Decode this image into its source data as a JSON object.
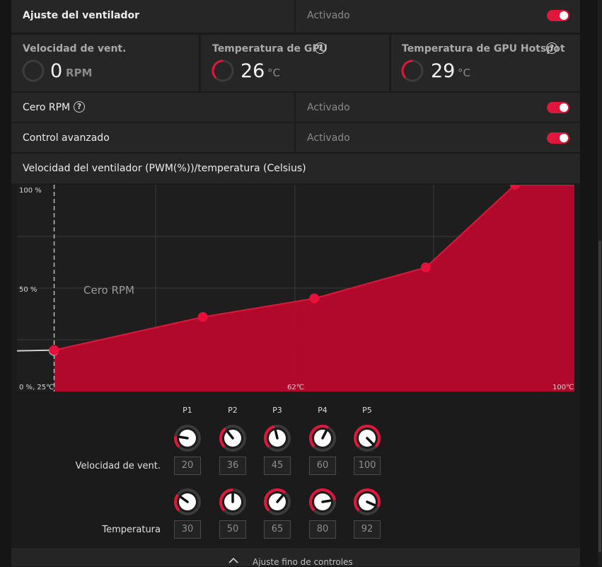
{
  "fan_tuning": {
    "label": "Ajuste del ventilador",
    "state": "Activado"
  },
  "stats": [
    {
      "title": "Velocidad de vent.",
      "value": "0",
      "unit": "RPM"
    },
    {
      "title": "Temperatura de GPU",
      "value": "26",
      "unit": "°C"
    },
    {
      "title": "Temperatura de GPU Hotspot",
      "value": "29",
      "unit": "°C"
    }
  ],
  "zero_rpm": {
    "label": "Cero RPM",
    "state": "Activado"
  },
  "advanced": {
    "label": "Control avanzado",
    "state": "Activado"
  },
  "chart_header": "Velocidad del ventilador (PWM(%))/temperatura (Celsius)",
  "chart_data": {
    "type": "area",
    "y_tick_labels": [
      "100 %",
      "50 %",
      "0 %, 25℃"
    ],
    "x_tick_labels": [
      "62℃",
      "100℃"
    ],
    "zero_rpm_label": "Cero RPM",
    "ylim": [
      0,
      100
    ],
    "xlim": [
      25,
      100
    ],
    "zero_rpm_point": {
      "x": 25,
      "y": 20
    },
    "points": [
      {
        "name": "P1",
        "x": 30,
        "y": 20
      },
      {
        "name": "P2",
        "x": 50,
        "y": 36
      },
      {
        "name": "P3",
        "x": 65,
        "y": 45
      },
      {
        "name": "P4",
        "x": 80,
        "y": 60
      },
      {
        "name": "P5",
        "x": 92,
        "y": 100
      }
    ]
  },
  "controls": {
    "points": [
      "P1",
      "P2",
      "P3",
      "P4",
      "P5"
    ],
    "speed_label": "Velocidad de vent.",
    "temp_label": "Temperatura",
    "speed_values": [
      "20",
      "36",
      "45",
      "60",
      "100"
    ],
    "temp_values": [
      "30",
      "50",
      "65",
      "80",
      "92"
    ],
    "speed_fractions": [
      0.2,
      0.36,
      0.45,
      0.6,
      1.0
    ],
    "temp_fractions": [
      0.3,
      0.5,
      0.65,
      0.8,
      0.92
    ]
  },
  "footer": {
    "label": "Ajuste fino de controles"
  },
  "colors": {
    "accent": "#e0163a",
    "panel": "#262626"
  }
}
